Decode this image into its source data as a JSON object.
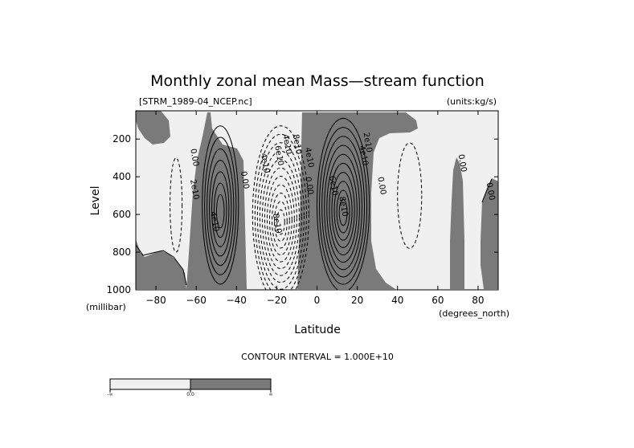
{
  "chart_data": {
    "type": "contour",
    "title": "Monthly zonal mean Mass—stream function",
    "file_label": "[STRM_1989-04_NCEP.nc]",
    "units_label": "(units:kg/s)",
    "xlabel": "Latitude",
    "x_units": "(degrees_north)",
    "ylabel": "Level",
    "y_units": "(millibar)",
    "xlim": [
      -90,
      90
    ],
    "ylim": [
      1000,
      50
    ],
    "x_ticks": [
      -80,
      -60,
      -40,
      -20,
      0,
      20,
      40,
      60,
      80
    ],
    "y_ticks": [
      200,
      400,
      600,
      800,
      1000
    ],
    "contour_interval_text": "CONTOUR INTERVAL = 1.000E+10",
    "contour_interval": 10000000000.0,
    "colors": {
      "negative": "#f0f0f0",
      "positive": "#7a7a7a",
      "line": "#000000"
    },
    "shading_bar": {
      "labels": [
        "-∞",
        "0.0",
        "∞"
      ]
    },
    "cells": [
      {
        "sign": "positive",
        "lat": -48,
        "p": 550,
        "rx": 9,
        "ry": 420,
        "peak": 70000000000.0
      },
      {
        "sign": "negative",
        "lat": -18,
        "p": 600,
        "rx": 14,
        "ry": 470,
        "peak": -110000000000.0
      },
      {
        "sign": "positive",
        "lat": 13,
        "p": 550,
        "rx": 13,
        "ry": 460,
        "peak": 100000000000.0
      },
      {
        "sign": "negative",
        "lat": 46,
        "p": 500,
        "rx": 6,
        "ry": 280,
        "peak": -10000000000.0
      },
      {
        "sign": "negative",
        "lat": -70,
        "p": 550,
        "rx": 3,
        "ry": 250,
        "peak": -10000000000.0
      }
    ],
    "contour_labels": [
      {
        "text": "0.00",
        "lat": -62,
        "p": 300
      },
      {
        "text": "2e10",
        "lat": -62,
        "p": 470
      },
      {
        "text": "4e10",
        "lat": -52,
        "p": 640
      },
      {
        "text": "0.00",
        "lat": -37,
        "p": 420
      },
      {
        "text": "4e10",
        "lat": -27,
        "p": 330
      },
      {
        "text": "6e10",
        "lat": -20,
        "p": 290
      },
      {
        "text": "8e10",
        "lat": -21,
        "p": 650
      },
      {
        "text": "4e10",
        "lat": -16,
        "p": 230
      },
      {
        "text": "8e10",
        "lat": -11,
        "p": 230
      },
      {
        "text": "4e10",
        "lat": -5,
        "p": 300
      },
      {
        "text": "0.00",
        "lat": -5,
        "p": 450
      },
      {
        "text": "6e10",
        "lat": 7,
        "p": 450
      },
      {
        "text": "8e10",
        "lat": 12,
        "p": 560
      },
      {
        "text": "2e10",
        "lat": 24,
        "p": 220
      },
      {
        "text": "4e10",
        "lat": 22,
        "p": 290
      },
      {
        "text": "0.00",
        "lat": 31,
        "p": 450
      },
      {
        "text": "0.00",
        "lat": 71,
        "p": 330
      },
      {
        "text": "0.00",
        "lat": 85,
        "p": 480
      }
    ]
  }
}
